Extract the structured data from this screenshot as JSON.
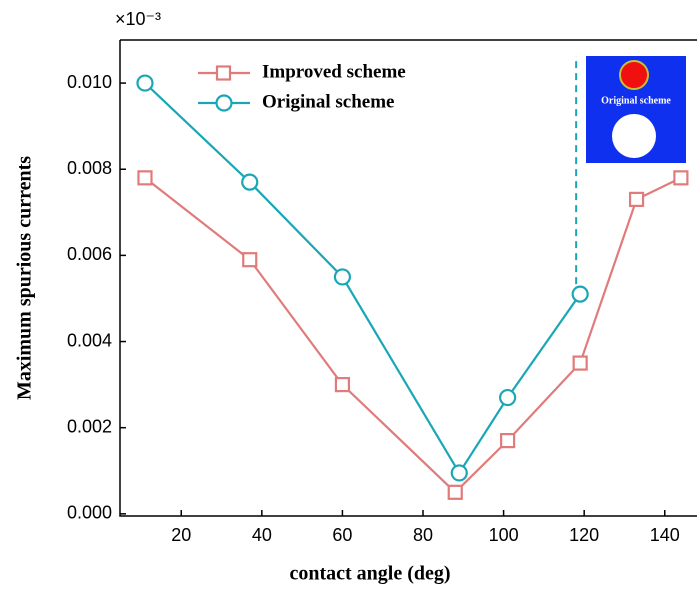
{
  "chart_data": {
    "type": "line",
    "x_label": "contact angle (deg)",
    "y_label": "Maximum spurious currents",
    "y_multiplier": "×10⁻³",
    "inset_label": "Original scheme",
    "xlim": [
      4.8,
      148
    ],
    "xticks": [
      20,
      40,
      60,
      80,
      100,
      120,
      140
    ],
    "ylim": [
      -5e-05,
      0.011
    ],
    "yticks": [
      {
        "value": 0,
        "label": "0.000"
      },
      {
        "value": 0.002,
        "label": "0.002"
      },
      {
        "value": 0.004,
        "label": "0.004"
      },
      {
        "value": 0.006,
        "label": "0.006"
      },
      {
        "value": 0.008,
        "label": "0.008"
      },
      {
        "value": 0.01,
        "label": "0.010"
      }
    ],
    "series": [
      {
        "name": "Improved scheme",
        "color": "#e07b7b",
        "marker": "square",
        "x": [
          11,
          37,
          60,
          88,
          101,
          119,
          133,
          144
        ],
        "values": [
          0.0078,
          0.0059,
          0.003,
          0.0005,
          0.0017,
          0.0035,
          0.0073,
          0.0078
        ]
      },
      {
        "name": "Original scheme",
        "color": "#1aa7b5",
        "marker": "circle",
        "x": [
          11,
          37,
          60,
          89,
          101,
          119
        ],
        "values": [
          0.01,
          0.0077,
          0.0055,
          0.00095,
          0.0027,
          0.0051
        ]
      }
    ]
  }
}
